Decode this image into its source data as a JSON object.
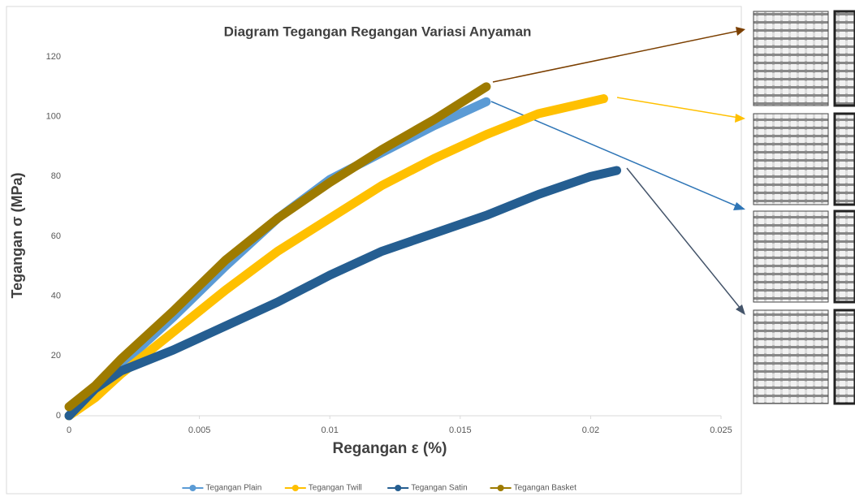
{
  "chart_data": {
    "type": "line",
    "title": "Diagram Tegangan Regangan Variasi Anyaman",
    "xlabel": "Regangan ε (%)",
    "ylabel": "Tegangan σ (MPa)",
    "xlim": [
      0,
      0.025
    ],
    "xticks": [
      0,
      0.005,
      0.01,
      0.015,
      0.02,
      0.025
    ],
    "ylim": [
      0,
      120
    ],
    "yticks": [
      0,
      20,
      40,
      60,
      80,
      100,
      120
    ],
    "grid": false,
    "legend": "bottom",
    "series": [
      {
        "name": "Tegangan Plain",
        "color": "#5b9bd5",
        "x": [
          0,
          0.001,
          0.002,
          0.004,
          0.006,
          0.008,
          0.01,
          0.012,
          0.014,
          0.016
        ],
        "values": [
          0,
          8,
          17,
          33,
          50,
          66,
          79,
          88,
          97,
          105
        ]
      },
      {
        "name": "Tegangan Twill",
        "color": "#ffc000",
        "x": [
          0,
          0.001,
          0.002,
          0.004,
          0.006,
          0.008,
          0.01,
          0.012,
          0.014,
          0.016,
          0.018,
          0.019,
          0.0205
        ],
        "values": [
          0,
          6,
          14,
          28,
          42,
          55,
          66,
          77,
          86,
          94,
          101,
          103,
          106
        ]
      },
      {
        "name": "Tegangan Satin",
        "color": "#255e91",
        "x": [
          0,
          0.001,
          0.002,
          0.004,
          0.006,
          0.008,
          0.01,
          0.012,
          0.014,
          0.016,
          0.018,
          0.02,
          0.021
        ],
        "values": [
          0,
          9,
          15,
          22,
          30,
          38,
          47,
          55,
          61,
          67,
          74,
          80,
          82
        ]
      },
      {
        "name": "Tegangan Basket",
        "color": "#9e7b00",
        "x": [
          0,
          0.001,
          0.002,
          0.004,
          0.006,
          0.008,
          0.01,
          0.012,
          0.014,
          0.016
        ],
        "values": [
          3,
          10,
          19,
          35,
          52,
          66,
          78,
          89,
          99,
          110
        ]
      }
    ]
  }
}
